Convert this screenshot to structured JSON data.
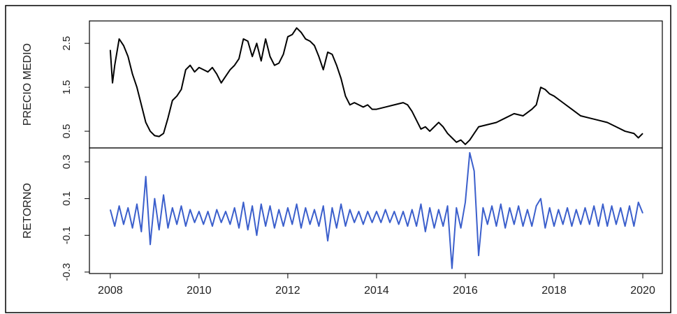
{
  "chart_data": [
    {
      "type": "line",
      "ylabel": "PRECIO MEDIO",
      "color": "#000000",
      "x": [
        2008.0,
        2008.05,
        2008.1,
        2008.2,
        2008.3,
        2008.4,
        2008.5,
        2008.6,
        2008.7,
        2008.8,
        2008.9,
        2009.0,
        2009.1,
        2009.2,
        2009.3,
        2009.4,
        2009.5,
        2009.6,
        2009.7,
        2009.8,
        2009.9,
        2010.0,
        2010.1,
        2010.2,
        2010.3,
        2010.4,
        2010.5,
        2010.6,
        2010.7,
        2010.8,
        2010.9,
        2011.0,
        2011.1,
        2011.2,
        2011.3,
        2011.4,
        2011.5,
        2011.6,
        2011.7,
        2011.8,
        2011.9,
        2012.0,
        2012.1,
        2012.2,
        2012.3,
        2012.4,
        2012.5,
        2012.6,
        2012.7,
        2012.8,
        2012.9,
        2013.0,
        2013.1,
        2013.2,
        2013.3,
        2013.4,
        2013.5,
        2013.6,
        2013.7,
        2013.8,
        2013.9,
        2014.0,
        2014.2,
        2014.4,
        2014.6,
        2014.7,
        2014.8,
        2014.9,
        2015.0,
        2015.1,
        2015.2,
        2015.3,
        2015.4,
        2015.5,
        2015.6,
        2015.7,
        2015.8,
        2015.9,
        2016.0,
        2016.1,
        2016.2,
        2016.3,
        2016.5,
        2016.7,
        2016.9,
        2017.1,
        2017.3,
        2017.5,
        2017.6,
        2017.7,
        2017.8,
        2017.9,
        2018.0,
        2018.2,
        2018.4,
        2018.6,
        2018.8,
        2019.0,
        2019.2,
        2019.4,
        2019.6,
        2019.8,
        2019.9,
        2020.0
      ],
      "values": [
        2.35,
        1.6,
        2.0,
        2.6,
        2.45,
        2.2,
        1.8,
        1.5,
        1.1,
        0.7,
        0.5,
        0.4,
        0.38,
        0.45,
        0.8,
        1.2,
        1.3,
        1.45,
        1.9,
        2.0,
        1.85,
        1.95,
        1.9,
        1.85,
        1.95,
        1.8,
        1.6,
        1.75,
        1.9,
        2.0,
        2.15,
        2.6,
        2.55,
        2.2,
        2.5,
        2.1,
        2.6,
        2.2,
        2.0,
        2.05,
        2.25,
        2.65,
        2.7,
        2.85,
        2.75,
        2.6,
        2.55,
        2.45,
        2.2,
        1.9,
        2.3,
        2.25,
        2.0,
        1.7,
        1.3,
        1.1,
        1.15,
        1.1,
        1.05,
        1.1,
        1.0,
        1.0,
        1.05,
        1.1,
        1.15,
        1.1,
        0.95,
        0.75,
        0.55,
        0.6,
        0.5,
        0.6,
        0.7,
        0.6,
        0.45,
        0.35,
        0.25,
        0.3,
        0.2,
        0.3,
        0.45,
        0.6,
        0.65,
        0.7,
        0.8,
        0.9,
        0.85,
        1.0,
        1.1,
        1.5,
        1.45,
        1.35,
        1.3,
        1.15,
        1.0,
        0.85,
        0.8,
        0.75,
        0.7,
        0.6,
        0.5,
        0.45,
        0.35,
        0.45
      ],
      "xlim": [
        2007.53,
        2020.44
      ],
      "ylim": [
        0.12,
        3.01
      ],
      "yticks": [
        0.5,
        1.5,
        2.5
      ]
    },
    {
      "type": "line",
      "ylabel": "RETORNO",
      "color": "#3b5fcc",
      "x": [
        2008.0,
        2008.1,
        2008.2,
        2008.3,
        2008.4,
        2008.5,
        2008.6,
        2008.7,
        2008.8,
        2008.9,
        2009.0,
        2009.1,
        2009.2,
        2009.3,
        2009.4,
        2009.5,
        2009.6,
        2009.7,
        2009.8,
        2009.9,
        2010.0,
        2010.1,
        2010.2,
        2010.3,
        2010.4,
        2010.5,
        2010.6,
        2010.7,
        2010.8,
        2010.9,
        2011.0,
        2011.1,
        2011.2,
        2011.3,
        2011.4,
        2011.5,
        2011.6,
        2011.7,
        2011.8,
        2011.9,
        2012.0,
        2012.1,
        2012.2,
        2012.3,
        2012.4,
        2012.5,
        2012.6,
        2012.7,
        2012.8,
        2012.9,
        2013.0,
        2013.1,
        2013.2,
        2013.3,
        2013.4,
        2013.5,
        2013.6,
        2013.7,
        2013.8,
        2013.9,
        2014.0,
        2014.1,
        2014.2,
        2014.3,
        2014.4,
        2014.5,
        2014.6,
        2014.7,
        2014.8,
        2014.9,
        2015.0,
        2015.1,
        2015.2,
        2015.3,
        2015.4,
        2015.5,
        2015.6,
        2015.7,
        2015.8,
        2015.9,
        2016.0,
        2016.1,
        2016.2,
        2016.3,
        2016.4,
        2016.5,
        2016.6,
        2016.7,
        2016.8,
        2016.9,
        2017.0,
        2017.1,
        2017.2,
        2017.3,
        2017.4,
        2017.5,
        2017.6,
        2017.7,
        2017.8,
        2017.9,
        2018.0,
        2018.1,
        2018.2,
        2018.3,
        2018.4,
        2018.5,
        2018.6,
        2018.7,
        2018.8,
        2018.9,
        2019.0,
        2019.1,
        2019.2,
        2019.3,
        2019.4,
        2019.5,
        2019.6,
        2019.7,
        2019.8,
        2019.9,
        2020.0
      ],
      "values": [
        0.04,
        -0.05,
        0.06,
        -0.04,
        0.05,
        -0.06,
        0.07,
        -0.08,
        0.22,
        -0.15,
        0.1,
        -0.07,
        0.12,
        -0.06,
        0.05,
        -0.04,
        0.06,
        -0.05,
        0.04,
        -0.03,
        0.03,
        -0.04,
        0.03,
        -0.05,
        0.04,
        -0.03,
        0.03,
        -0.04,
        0.05,
        -0.06,
        0.08,
        -0.07,
        0.06,
        -0.1,
        0.07,
        -0.05,
        0.06,
        -0.06,
        0.04,
        -0.05,
        0.05,
        -0.04,
        0.07,
        -0.06,
        0.05,
        -0.04,
        0.04,
        -0.05,
        0.06,
        -0.13,
        0.05,
        -0.06,
        0.07,
        -0.05,
        0.04,
        -0.03,
        0.03,
        -0.04,
        0.03,
        -0.03,
        0.03,
        -0.03,
        0.04,
        -0.03,
        0.03,
        -0.04,
        0.03,
        -0.05,
        0.04,
        -0.05,
        0.07,
        -0.08,
        0.05,
        -0.06,
        0.04,
        -0.05,
        0.06,
        -0.28,
        0.05,
        -0.06,
        0.08,
        0.35,
        0.25,
        -0.21,
        0.05,
        -0.04,
        0.06,
        -0.05,
        0.07,
        -0.06,
        0.05,
        -0.04,
        0.06,
        -0.05,
        0.04,
        -0.05,
        0.06,
        0.1,
        -0.06,
        0.05,
        -0.05,
        0.04,
        -0.04,
        0.05,
        -0.05,
        0.04,
        -0.04,
        0.05,
        -0.04,
        0.06,
        -0.05,
        0.07,
        -0.05,
        0.06,
        -0.04,
        0.05,
        -0.05,
        0.06,
        -0.05,
        0.08,
        0.02
      ],
      "xlim": [
        2007.53,
        2020.44
      ],
      "ylim": [
        -0.308,
        0.376
      ],
      "yticks": [
        -0.3,
        -0.1,
        0.1,
        0.3
      ],
      "xticks": [
        2008,
        2010,
        2012,
        2014,
        2016,
        2018,
        2020
      ]
    }
  ]
}
